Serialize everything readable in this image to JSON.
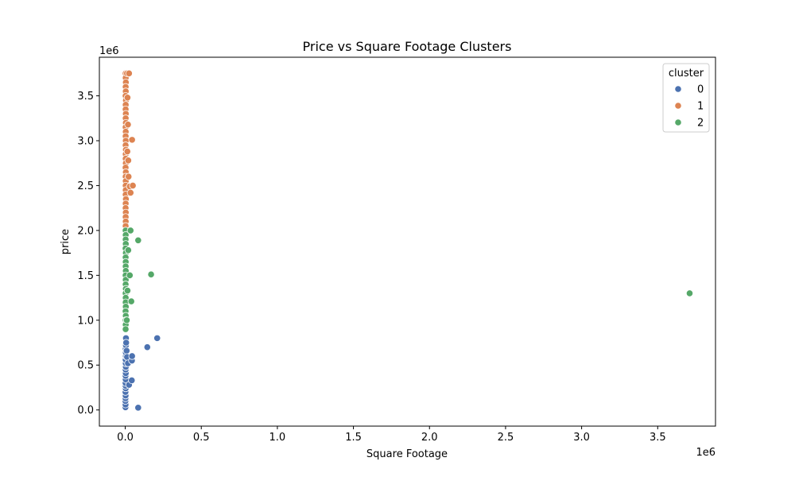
{
  "chart_data": {
    "type": "scatter",
    "title": "Price vs Square Footage Clusters",
    "xlabel": "Square Footage",
    "ylabel": "price",
    "x_offset_text": "1e6",
    "y_offset_text": "1e6",
    "xlim": [
      -170000,
      3880000
    ],
    "ylim": [
      -180000,
      3930000
    ],
    "x_ticks": [
      0,
      500000,
      1000000,
      1500000,
      2000000,
      2500000,
      3000000,
      3500000
    ],
    "x_tick_labels": [
      "0.0",
      "0.5",
      "1.0",
      "1.5",
      "2.0",
      "2.5",
      "3.0",
      "3.5"
    ],
    "y_ticks": [
      0,
      500000,
      1000000,
      1500000,
      2000000,
      2500000,
      3000000,
      3500000
    ],
    "y_tick_labels": [
      "0.0",
      "0.5",
      "1.0",
      "1.5",
      "2.0",
      "2.5",
      "3.0",
      "3.5"
    ],
    "grid": false,
    "legend": {
      "title": "cluster",
      "placement": "top-right"
    },
    "series": [
      {
        "name": "0",
        "color": "#4c72b0",
        "points": [
          [
            1500,
            30000
          ],
          [
            2000,
            60000
          ],
          [
            1200,
            100000
          ],
          [
            1800,
            130000
          ],
          [
            2500,
            160000
          ],
          [
            1600,
            200000
          ],
          [
            3000,
            240000
          ],
          [
            2200,
            270000
          ],
          [
            1900,
            300000
          ],
          [
            2800,
            340000
          ],
          [
            2100,
            380000
          ],
          [
            3500,
            410000
          ],
          [
            2600,
            450000
          ],
          [
            4000,
            480000
          ],
          [
            3200,
            520000
          ],
          [
            2700,
            560000
          ],
          [
            4200,
            600000
          ],
          [
            3800,
            640000
          ],
          [
            2900,
            680000
          ],
          [
            4500,
            720000
          ],
          [
            5000,
            760000
          ],
          [
            4800,
            800000
          ],
          [
            6000,
            750000
          ],
          [
            9000,
            660000
          ],
          [
            12000,
            590000
          ],
          [
            18000,
            520000
          ],
          [
            25000,
            280000
          ],
          [
            44000,
            550000
          ],
          [
            45000,
            600000
          ],
          [
            43000,
            330000
          ],
          [
            85000,
            25000
          ],
          [
            145000,
            700000
          ],
          [
            210000,
            800000
          ]
        ]
      },
      {
        "name": "1",
        "color": "#dd8452",
        "points": [
          [
            2500,
            3750000
          ],
          [
            3000,
            3700000
          ],
          [
            4000,
            3650000
          ],
          [
            2800,
            3600000
          ],
          [
            3500,
            3550000
          ],
          [
            2200,
            3500000
          ],
          [
            4500,
            3450000
          ],
          [
            3000,
            3400000
          ],
          [
            2600,
            3350000
          ],
          [
            3800,
            3300000
          ],
          [
            2900,
            3250000
          ],
          [
            4100,
            3200000
          ],
          [
            2400,
            3150000
          ],
          [
            3300,
            3100000
          ],
          [
            2700,
            3050000
          ],
          [
            3600,
            3000000
          ],
          [
            2500,
            2950000
          ],
          [
            4200,
            2900000
          ],
          [
            3100,
            2850000
          ],
          [
            2800,
            2800000
          ],
          [
            3700,
            2750000
          ],
          [
            2300,
            2700000
          ],
          [
            3900,
            2650000
          ],
          [
            2600,
            2600000
          ],
          [
            3400,
            2550000
          ],
          [
            2900,
            2500000
          ],
          [
            3200,
            2450000
          ],
          [
            2700,
            2400000
          ],
          [
            4300,
            2350000
          ],
          [
            3000,
            2300000
          ],
          [
            2500,
            2250000
          ],
          [
            3600,
            2200000
          ],
          [
            2800,
            2150000
          ],
          [
            3300,
            2100000
          ],
          [
            2600,
            2050000
          ],
          [
            12000,
            3750000
          ],
          [
            15000,
            3480000
          ],
          [
            18000,
            3180000
          ],
          [
            14000,
            2880000
          ],
          [
            20000,
            2780000
          ],
          [
            22000,
            2600000
          ],
          [
            25000,
            3750000
          ],
          [
            30000,
            2490000
          ],
          [
            35000,
            2420000
          ],
          [
            45000,
            3010000
          ],
          [
            50000,
            2500000
          ]
        ]
      },
      {
        "name": "2",
        "color": "#55a868",
        "points": [
          [
            2500,
            2000000
          ],
          [
            3000,
            1950000
          ],
          [
            2800,
            1900000
          ],
          [
            3500,
            1850000
          ],
          [
            2200,
            1800000
          ],
          [
            4000,
            1750000
          ],
          [
            2600,
            1700000
          ],
          [
            3200,
            1650000
          ],
          [
            2900,
            1600000
          ],
          [
            3700,
            1550000
          ],
          [
            2400,
            1500000
          ],
          [
            3300,
            1450000
          ],
          [
            2700,
            1400000
          ],
          [
            3900,
            1350000
          ],
          [
            2500,
            1300000
          ],
          [
            3100,
            1250000
          ],
          [
            2800,
            1200000
          ],
          [
            3600,
            1150000
          ],
          [
            2300,
            1100000
          ],
          [
            3400,
            1050000
          ],
          [
            2900,
            1000000
          ],
          [
            3000,
            950000
          ],
          [
            2600,
            900000
          ],
          [
            10000,
            1000000
          ],
          [
            15000,
            1330000
          ],
          [
            20000,
            1780000
          ],
          [
            35000,
            2000000
          ],
          [
            30000,
            1500000
          ],
          [
            40000,
            1210000
          ],
          [
            85000,
            1890000
          ],
          [
            170000,
            1510000
          ],
          [
            3710000,
            1300000
          ]
        ]
      }
    ]
  }
}
